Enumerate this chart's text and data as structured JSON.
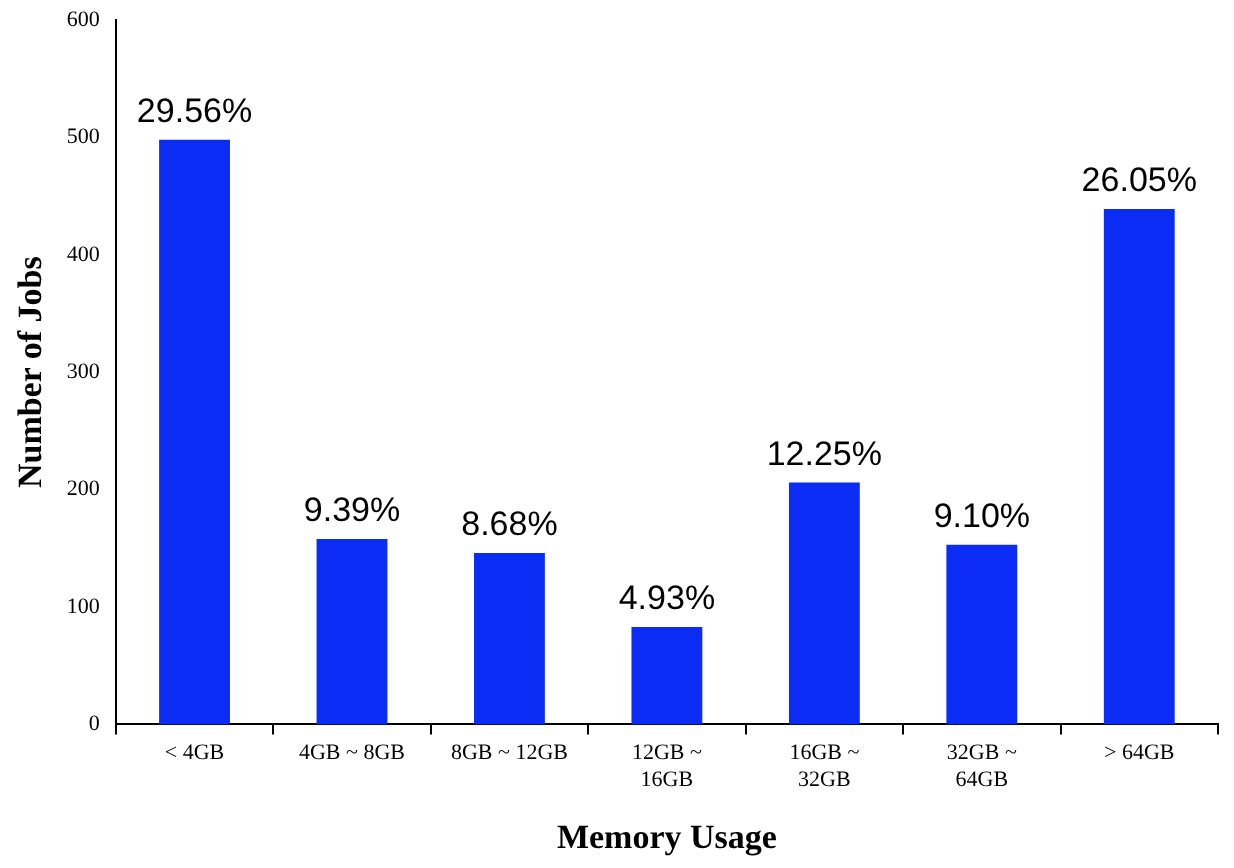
{
  "chart_data": {
    "type": "bar",
    "xlabel": "Memory Usage",
    "ylabel": "Number of Jobs",
    "categories": [
      "< 4GB",
      "4GB ~ 8GB",
      "8GB ~ 12GB",
      "12GB ~ 16GB",
      "16GB ~ 32GB",
      "32GB ~ 64GB",
      "> 64GB"
    ],
    "values": [
      498,
      158,
      146,
      83,
      206,
      153,
      439
    ],
    "annotations": [
      {
        "text": "29.56%",
        "x": "< 4GB",
        "y": 498
      },
      {
        "text": "9.39%",
        "x": "4GB ~ 8GB",
        "y": 158
      },
      {
        "text": "8.68%",
        "x": "8GB ~ 12GB",
        "y": 146
      },
      {
        "text": "4.93%",
        "x": "12GB ~ 16GB",
        "y": 83
      },
      {
        "text": "12.25%",
        "x": "16GB ~ 32GB",
        "y": 206
      },
      {
        "text": "9.10%",
        "x": "32GB ~ 64GB",
        "y": 153
      },
      {
        "text": "26.05%",
        "x": "> 64GB",
        "y": 439
      }
    ],
    "color": "#0a2cf5",
    "ylim": [
      0,
      600
    ],
    "yticks": [
      0,
      100,
      200,
      300,
      400,
      500,
      600
    ],
    "grid": false,
    "legend": false
  }
}
